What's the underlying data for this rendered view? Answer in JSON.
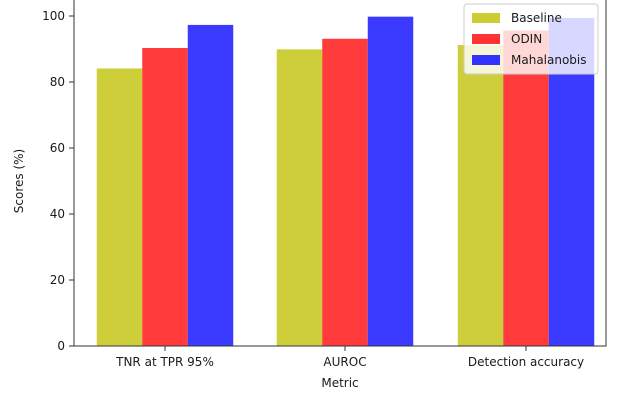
{
  "chart_data": {
    "type": "bar",
    "title": "",
    "xlabel": "Metric",
    "ylabel": "Scores (%)",
    "ylim": [
      0,
      100
    ],
    "yticks": [
      "0",
      "20",
      "40",
      "60",
      "80",
      "100"
    ],
    "categories": [
      "TNR at TPR 95%",
      "AUROC",
      "Detection accuracy"
    ],
    "series": [
      {
        "name": "Baseline",
        "color": "#cccc33",
        "values": [
          84.1,
          89.9,
          91.2
        ]
      },
      {
        "name": "ODIN",
        "color": "#ff3333",
        "values": [
          90.3,
          93.1,
          95.6
        ]
      },
      {
        "name": "Mahalanobis",
        "color": "#3333ff",
        "values": [
          97.3,
          99.8,
          99.4
        ]
      }
    ],
    "legend": {
      "position": "top-right"
    },
    "grid": false
  }
}
